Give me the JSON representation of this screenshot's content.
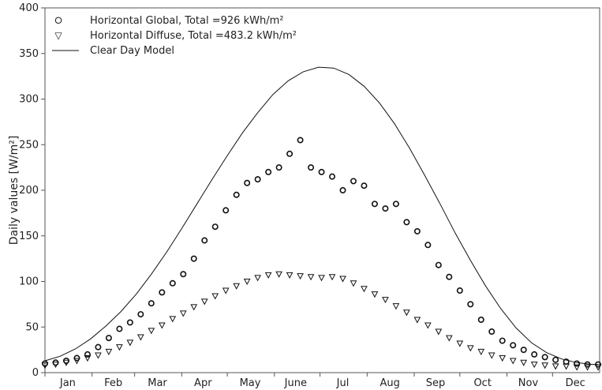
{
  "chart_data": {
    "type": "scatter",
    "ylabel": "Daily values  [W/m²]",
    "xlabel": "",
    "ylim": [
      0,
      400
    ],
    "yticks": [
      0,
      50,
      100,
      150,
      200,
      250,
      300,
      350,
      400
    ],
    "xlim": [
      1,
      366
    ],
    "months": [
      {
        "label": "Jan",
        "day": 16
      },
      {
        "label": "Feb",
        "day": 46
      },
      {
        "label": "Mar",
        "day": 75
      },
      {
        "label": "Apr",
        "day": 105
      },
      {
        "label": "May",
        "day": 136
      },
      {
        "label": "June",
        "day": 166
      },
      {
        "label": "Jul",
        "day": 197
      },
      {
        "label": "Aug",
        "day": 228
      },
      {
        "label": "Sep",
        "day": 258
      },
      {
        "label": "Oct",
        "day": 289
      },
      {
        "label": "Nov",
        "day": 319
      },
      {
        "label": "Dec",
        "day": 350
      }
    ],
    "legend_position": "top-left",
    "series": [
      {
        "name": "Horizontal Global,  Total =926 kWh/m²",
        "marker": "circle",
        "color": "#111111",
        "x": [
          1,
          8,
          15,
          22,
          29,
          36,
          43,
          50,
          57,
          64,
          71,
          78,
          85,
          92,
          99,
          106,
          113,
          120,
          127,
          134,
          141,
          148,
          155,
          162,
          169,
          176,
          183,
          190,
          197,
          204,
          211,
          218,
          225,
          232,
          239,
          246,
          253,
          260,
          267,
          274,
          281,
          288,
          295,
          302,
          309,
          316,
          323,
          330,
          337,
          344,
          351,
          358,
          365
        ],
        "y": [
          10,
          11,
          13,
          16,
          20,
          28,
          38,
          48,
          55,
          64,
          76,
          88,
          98,
          108,
          125,
          145,
          160,
          178,
          195,
          208,
          212,
          220,
          225,
          240,
          255,
          225,
          220,
          215,
          200,
          210,
          205,
          185,
          180,
          185,
          165,
          155,
          140,
          118,
          105,
          90,
          75,
          58,
          45,
          35,
          30,
          25,
          20,
          17,
          14,
          12,
          10,
          9,
          9
        ]
      },
      {
        "name": "Horizontal Diffuse,  Total =483.2 kWh/m²",
        "marker": "triangle-down",
        "color": "#111111",
        "x": [
          1,
          8,
          15,
          22,
          29,
          36,
          43,
          50,
          57,
          64,
          71,
          78,
          85,
          92,
          99,
          106,
          113,
          120,
          127,
          134,
          141,
          148,
          155,
          162,
          169,
          176,
          183,
          190,
          197,
          204,
          211,
          218,
          225,
          232,
          239,
          246,
          253,
          260,
          267,
          274,
          281,
          288,
          295,
          302,
          309,
          316,
          323,
          330,
          337,
          344,
          351,
          358,
          365
        ],
        "y": [
          8,
          9,
          11,
          13,
          16,
          19,
          23,
          28,
          33,
          39,
          46,
          52,
          59,
          65,
          72,
          78,
          84,
          90,
          95,
          100,
          104,
          107,
          108,
          107,
          106,
          105,
          104,
          105,
          103,
          98,
          92,
          86,
          80,
          73,
          66,
          58,
          52,
          45,
          38,
          32,
          27,
          23,
          19,
          16,
          13,
          11,
          9,
          8,
          7,
          7,
          6,
          6,
          6
        ]
      },
      {
        "name": "Clear Day Model",
        "marker": "line",
        "color": "#111111",
        "x": [
          1,
          11,
          21,
          31,
          41,
          51,
          61,
          71,
          81,
          91,
          101,
          111,
          121,
          131,
          141,
          151,
          161,
          171,
          181,
          191,
          201,
          211,
          221,
          231,
          241,
          251,
          261,
          271,
          281,
          291,
          301,
          311,
          321,
          331,
          341,
          351,
          361,
          365
        ],
        "y": [
          13,
          18,
          26,
          37,
          51,
          67,
          86,
          108,
          132,
          158,
          185,
          212,
          238,
          263,
          285,
          305,
          320,
          330,
          335,
          334,
          327,
          314,
          296,
          273,
          246,
          216,
          185,
          153,
          123,
          95,
          70,
          49,
          33,
          22,
          15,
          11,
          9,
          9
        ]
      }
    ]
  }
}
